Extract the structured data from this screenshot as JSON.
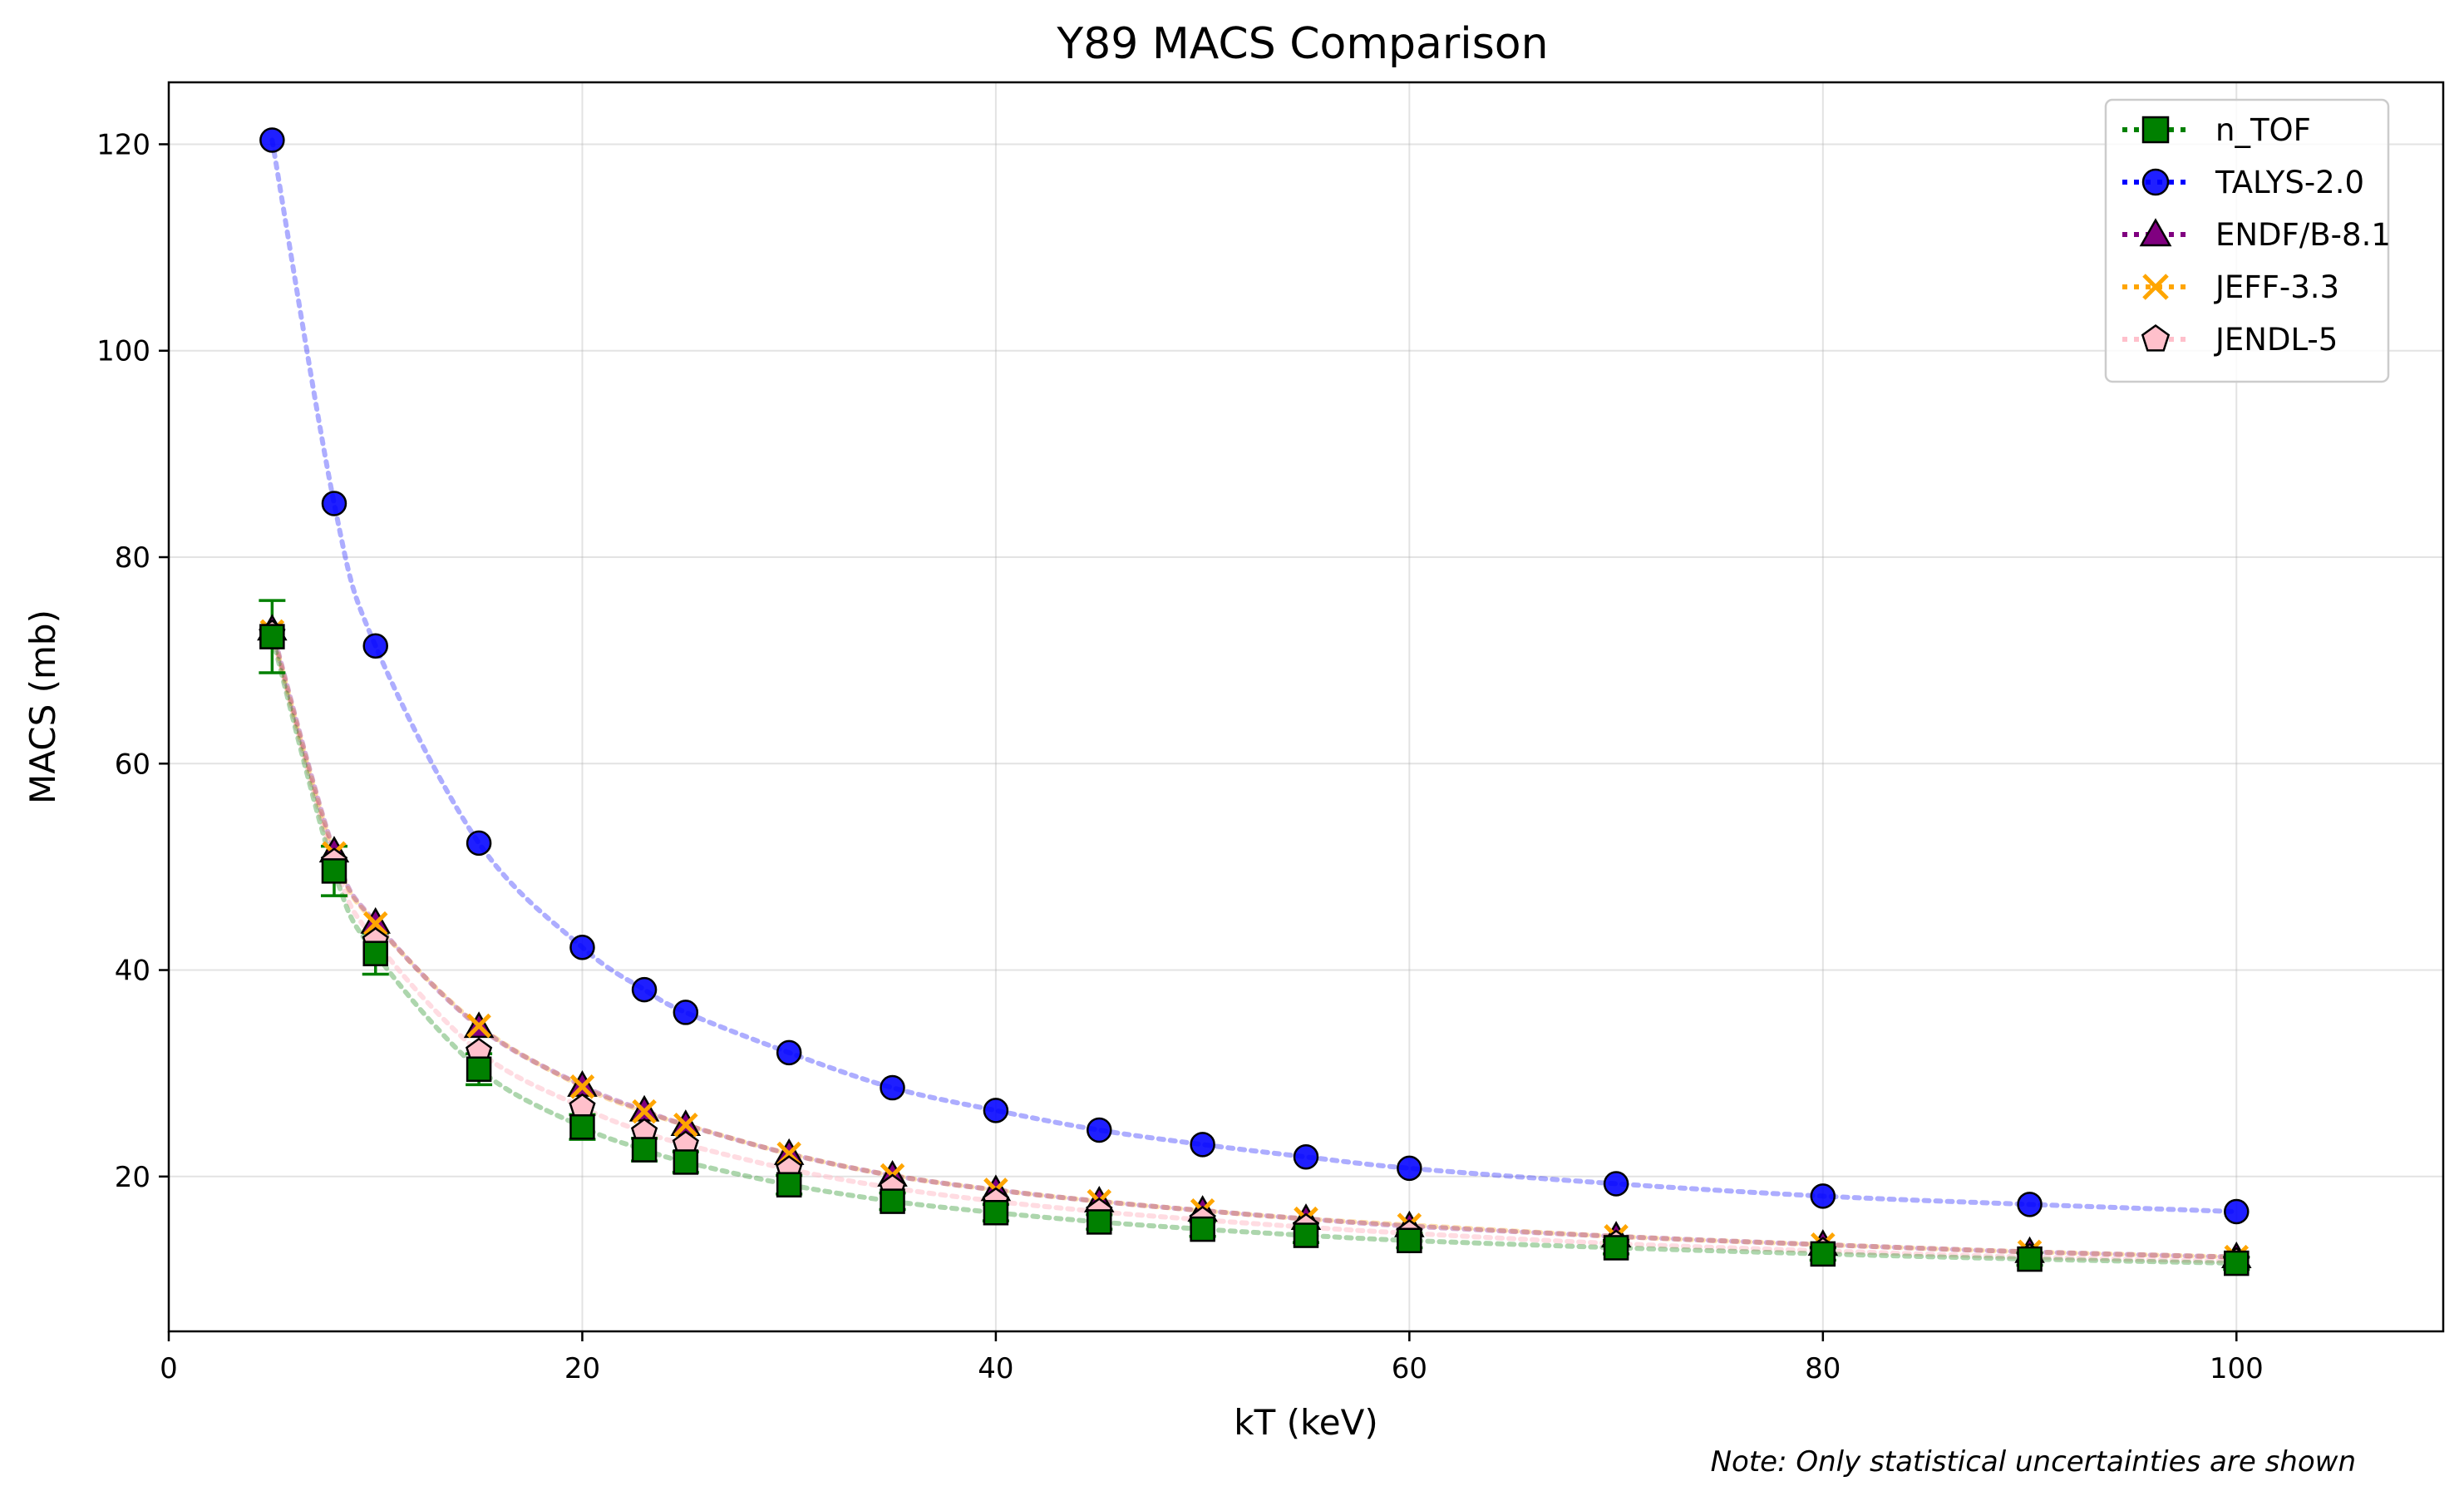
{
  "chart_data": {
    "type": "scatter",
    "title": "Y89 MACS Comparison",
    "xlabel": "kT (keV)",
    "ylabel": "MACS (mb)",
    "xlim": [
      0,
      110
    ],
    "ylim": [
      5,
      126
    ],
    "xticks": [
      0,
      20,
      40,
      60,
      80,
      100
    ],
    "yticks": [
      20,
      40,
      60,
      80,
      100,
      120
    ],
    "grid": true,
    "legend_position": "upper-right",
    "note": "Note: Only statistical uncertainties are shown",
    "x": [
      5,
      8,
      10,
      15,
      20,
      23,
      25,
      30,
      35,
      40,
      45,
      50,
      55,
      60,
      70,
      80,
      90,
      100
    ],
    "series": [
      {
        "name": "n_TOF",
        "marker": "square",
        "color": "#008000",
        "values": [
          72.3,
          49.6,
          41.6,
          30.4,
          24.8,
          22.6,
          21.4,
          19.2,
          17.6,
          16.5,
          15.6,
          14.9,
          14.3,
          13.8,
          13.1,
          12.5,
          12.0,
          11.6
        ],
        "errors": [
          3.5,
          2.4,
          2.0,
          1.5,
          1.2,
          1.1,
          1.0,
          0.9,
          0.8,
          0.8,
          0.7,
          0.7,
          0.7,
          0.7,
          0.6,
          0.6,
          0.6,
          0.6
        ]
      },
      {
        "name": "TALYS-2.0",
        "marker": "circle",
        "color": "#0000ff",
        "values": [
          120.4,
          85.2,
          71.4,
          52.3,
          42.2,
          38.1,
          35.9,
          32.0,
          28.6,
          26.4,
          24.5,
          23.1,
          21.9,
          20.8,
          19.3,
          18.1,
          17.3,
          16.6
        ]
      },
      {
        "name": "ENDF/B-8.1",
        "marker": "triangle",
        "color": "#800080",
        "values": [
          73.0,
          51.5,
          44.6,
          34.5,
          28.8,
          26.4,
          25.0,
          22.2,
          20.1,
          18.7,
          17.6,
          16.7,
          15.9,
          15.2,
          14.2,
          13.4,
          12.7,
          12.2
        ]
      },
      {
        "name": "JEFF-3.3",
        "marker": "x",
        "color": "#ffa500",
        "values": [
          72.8,
          51.3,
          44.5,
          34.6,
          28.7,
          26.3,
          25.0,
          22.2,
          20.1,
          18.7,
          17.6,
          16.7,
          15.9,
          15.3,
          14.2,
          13.4,
          12.7,
          12.2
        ]
      },
      {
        "name": "JENDL-5",
        "marker": "pentagon",
        "color": "#ffc0cb",
        "values": [
          72.6,
          50.5,
          42.8,
          32.1,
          26.7,
          24.3,
          23.1,
          20.7,
          18.9,
          17.6,
          16.6,
          15.8,
          15.1,
          14.5,
          13.5,
          12.8,
          12.2,
          11.8
        ]
      }
    ]
  }
}
